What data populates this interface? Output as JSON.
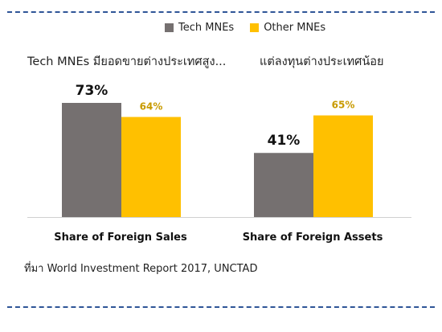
{
  "legend": {
    "tech_label": "Tech MNEs",
    "other_label": "Other MNEs"
  },
  "headings": {
    "left": "Tech MNEs มียอดขายต่างประเทศสูง...",
    "right": "แต่ลงทุนต่างประเทศน้อย"
  },
  "source": "ที่มา World Investment Report 2017, UNCTAD",
  "colors": {
    "tech": "#757070",
    "other": "#ffc000",
    "axis": "#d0d0d0",
    "divider": "#2f5597"
  },
  "chart_data": {
    "type": "bar",
    "categories": [
      "Share of Foreign Sales",
      "Share of Foreign Assets"
    ],
    "series": [
      {
        "name": "Tech MNEs",
        "values": [
          73,
          41
        ],
        "labels": [
          "73%",
          "41%"
        ]
      },
      {
        "name": "Other MNEs",
        "values": [
          64,
          65
        ],
        "labels": [
          "64%",
          "65%"
        ]
      }
    ],
    "ylim": [
      0,
      100
    ],
    "grid": false,
    "legend_position": "top"
  }
}
